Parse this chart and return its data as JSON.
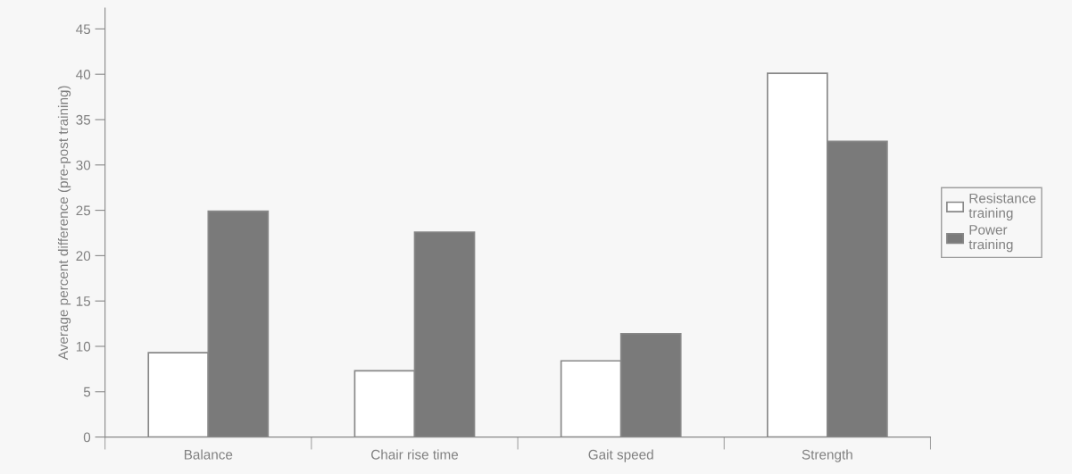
{
  "chart_data": {
    "type": "bar",
    "ylabel": "Average percent difference (pre-post training)",
    "categories": [
      "Balance",
      "Chair rise time",
      "Gait speed",
      "Strength"
    ],
    "series": [
      {
        "name": "Resistance training",
        "color": "#ffffff",
        "values": [
          9.3,
          7.3,
          8.4,
          40.1
        ]
      },
      {
        "name": "Power training",
        "color": "#7a7a7a",
        "values": [
          24.9,
          22.6,
          11.4,
          32.6
        ]
      }
    ],
    "ylim": [
      0,
      47.3
    ],
    "yticks": [
      0,
      5,
      10,
      15,
      20,
      25,
      30,
      35,
      40,
      45
    ],
    "grid": false,
    "legend": "right"
  }
}
